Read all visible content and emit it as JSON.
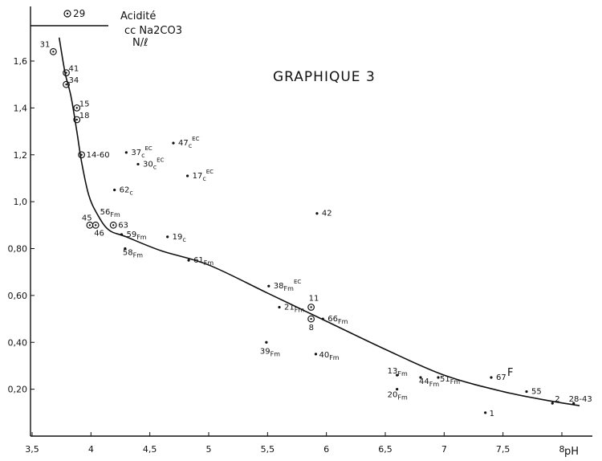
{
  "chart_data": {
    "type": "scatter",
    "title": "GRAPHIQUE 3",
    "ylabel_lines": [
      "Acidité",
      "cc Na2CO3",
      "N/ℓ"
    ],
    "xlabel": "pH",
    "curve_label": "F",
    "top_marker_label": "29",
    "xlim": [
      3.5,
      8.3
    ],
    "ylim": [
      0.0,
      1.75
    ],
    "x_ticks": [
      {
        "value": 3.5,
        "label": "3,5"
      },
      {
        "value": 4.0,
        "label": "4"
      },
      {
        "value": 4.5,
        "label": "4,5"
      },
      {
        "value": 5.0,
        "label": "5"
      },
      {
        "value": 5.5,
        "label": "5,5"
      },
      {
        "value": 6.0,
        "label": "6"
      },
      {
        "value": 6.5,
        "label": "6,5"
      },
      {
        "value": 7.0,
        "label": "7"
      },
      {
        "value": 7.5,
        "label": "7,5"
      },
      {
        "value": 8.0,
        "label": "8"
      }
    ],
    "y_ticks": [
      {
        "value": 0.2,
        "label": "0,20"
      },
      {
        "value": 0.4,
        "label": "0,40"
      },
      {
        "value": 0.6,
        "label": "0,60"
      },
      {
        "value": 0.8,
        "label": "0,80"
      },
      {
        "value": 1.0,
        "label": "1,0"
      },
      {
        "value": 1.2,
        "label": "1,2"
      },
      {
        "value": 1.4,
        "label": "1,4"
      },
      {
        "value": 1.6,
        "label": "1,6"
      }
    ],
    "points": [
      {
        "label": "31",
        "x": 3.68,
        "y": 1.64,
        "marker": "circle"
      },
      {
        "label": "41",
        "x": 3.79,
        "y": 1.55,
        "marker": "circle"
      },
      {
        "label": "34",
        "x": 3.79,
        "y": 1.5,
        "marker": "circle"
      },
      {
        "label": "15",
        "x": 3.88,
        "y": 1.4,
        "marker": "circle"
      },
      {
        "label": "18",
        "x": 3.88,
        "y": 1.35,
        "marker": "circle"
      },
      {
        "label": "14-60",
        "x": 3.92,
        "y": 1.2,
        "marker": "circle"
      },
      {
        "label": "45",
        "x": 3.99,
        "y": 0.9,
        "marker": "circle"
      },
      {
        "label": "46",
        "x": 4.04,
        "y": 0.9,
        "marker": "circle"
      },
      {
        "label": "63",
        "x": 4.19,
        "y": 0.9,
        "marker": "circle"
      },
      {
        "label": "56",
        "sub": "Fm",
        "x": 4.2,
        "y": 0.96,
        "marker": "none"
      },
      {
        "label": "59",
        "sub": "Fm",
        "x": 4.26,
        "y": 0.86,
        "marker": "dot"
      },
      {
        "label": "58",
        "sub": "Fm",
        "x": 4.29,
        "y": 0.8,
        "marker": "dot"
      },
      {
        "label": "62",
        "sub": "c",
        "x": 4.2,
        "y": 1.05,
        "marker": "dot"
      },
      {
        "label": "37",
        "sub": "c",
        "sup": "EC",
        "x": 4.3,
        "y": 1.21,
        "marker": "dot"
      },
      {
        "label": "30",
        "sub": "c",
        "sup": "EC",
        "x": 4.4,
        "y": 1.16,
        "marker": "dot"
      },
      {
        "label": "47",
        "sub": "c",
        "sup": "EC",
        "x": 4.7,
        "y": 1.25,
        "marker": "dot"
      },
      {
        "label": "17",
        "sub": "c",
        "sup": "EC",
        "x": 4.82,
        "y": 1.11,
        "marker": "dot"
      },
      {
        "label": "19",
        "sub": "c",
        "x": 4.65,
        "y": 0.85,
        "marker": "dot"
      },
      {
        "label": "61",
        "sub": "Fm",
        "x": 4.83,
        "y": 0.75,
        "marker": "dot"
      },
      {
        "label": "42",
        "x": 5.92,
        "y": 0.95,
        "marker": "dot"
      },
      {
        "label": "38",
        "sub": "Fm",
        "sup": "EC",
        "x": 5.51,
        "y": 0.64,
        "marker": "dot"
      },
      {
        "label": "21",
        "sub": "Fm",
        "x": 5.6,
        "y": 0.55,
        "marker": "dot"
      },
      {
        "label": "11",
        "x": 5.87,
        "y": 0.55,
        "marker": "circle"
      },
      {
        "label": "8",
        "x": 5.87,
        "y": 0.5,
        "marker": "circle"
      },
      {
        "label": "66",
        "sub": "Fm",
        "x": 5.97,
        "y": 0.5,
        "marker": "dot"
      },
      {
        "label": "39",
        "sub": "Fm",
        "x": 5.49,
        "y": 0.4,
        "marker": "dot"
      },
      {
        "label": "40",
        "sub": "Fm",
        "x": 5.91,
        "y": 0.35,
        "marker": "dot"
      },
      {
        "label": "13",
        "sub": "Fm",
        "x": 6.6,
        "y": 0.26,
        "marker": "dot"
      },
      {
        "label": "20",
        "sub": "Fm",
        "x": 6.6,
        "y": 0.2,
        "marker": "dot"
      },
      {
        "label": "44",
        "sub": "Fm",
        "x": 6.8,
        "y": 0.25,
        "marker": "dot"
      },
      {
        "label": "51",
        "sub": "Fm",
        "x": 6.95,
        "y": 0.25,
        "marker": "dot"
      },
      {
        "label": "1",
        "x": 7.35,
        "y": 0.1,
        "marker": "dot"
      },
      {
        "label": "67",
        "x": 7.4,
        "y": 0.25,
        "marker": "dot"
      },
      {
        "label": "55",
        "x": 7.7,
        "y": 0.19,
        "marker": "dot"
      },
      {
        "label": "2",
        "x": 7.92,
        "y": 0.14,
        "marker": "dot"
      },
      {
        "label": "28-43",
        "x": 8.1,
        "y": 0.14,
        "marker": "dot"
      }
    ],
    "fitted_curve": {
      "x": [
        3.73,
        3.78,
        3.83,
        3.88,
        3.92,
        3.98,
        4.05,
        4.15,
        4.3,
        4.6,
        5.0,
        5.5,
        6.0,
        6.5,
        7.0,
        7.5,
        7.9,
        8.15
      ],
      "y": [
        1.7,
        1.55,
        1.45,
        1.3,
        1.17,
        1.03,
        0.95,
        0.88,
        0.85,
        0.79,
        0.73,
        0.61,
        0.49,
        0.37,
        0.26,
        0.19,
        0.15,
        0.13
      ]
    }
  }
}
